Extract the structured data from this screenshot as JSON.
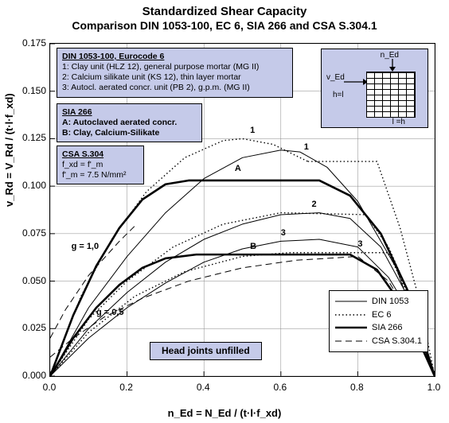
{
  "title1": "Standardized Shear Capacity",
  "title2": "Comparison DIN 1053-100, EC 6, SIA 266 and CSA S.304.1",
  "ylabel": "v_Rd = V_Rd / (t·l·f_xd)",
  "xlabel": "n_Ed = N_Ed / (t·l·f_xd)",
  "xlim": [
    0.0,
    1.0
  ],
  "ylim": [
    0.0,
    0.175
  ],
  "xticks": [
    0.0,
    0.2,
    0.4,
    0.6,
    0.8,
    1.0
  ],
  "yticks": [
    0.0,
    0.025,
    0.05,
    0.075,
    0.1,
    0.125,
    0.15,
    0.175
  ],
  "grid_color": "#888",
  "chart_bg": "#ffffff",
  "colors": {
    "text": "#000000",
    "box_bg": "#c5cae9",
    "line": "#000000"
  },
  "box_din": {
    "title": "DIN 1053-100, Eurocode 6",
    "lines": [
      "1: Clay unit (HLZ 12), general purpose mortar (MG II)",
      "2: Calcium silikate unit (KS 12), thin layer mortar",
      "3: Autocl. aerated concr. unit (PB 2), g.p.m. (MG II)"
    ]
  },
  "box_sia": {
    "title": "SIA 266",
    "lines": [
      "A: Autoclaved aerated concr.",
      "B: Clay, Calcium-Silikate"
    ]
  },
  "box_csa": {
    "title": "CSA S.304",
    "lines": [
      "f_xd = f'_m",
      "f'_m = 7.5 N/mm²"
    ]
  },
  "center_label": "Head joints unfilled",
  "legend": [
    {
      "label": "DIN 1053",
      "style": "solid",
      "weight": 1
    },
    {
      "label": "EC 6",
      "style": "dotted",
      "weight": 1.5
    },
    {
      "label": "SIA 266",
      "style": "solid",
      "weight": 2.4
    },
    {
      "label": "CSA S.304.1",
      "style": "dashed",
      "weight": 1
    }
  ],
  "inset": {
    "vEd": "v_Ed",
    "nEd": "n_Ed",
    "h": "h=l",
    "l": "l =h"
  },
  "curve_labels": {
    "g10": "g = 1,0",
    "g05": "g = 0,5",
    "A": "A",
    "B": "B",
    "1a": "1",
    "1b": "1",
    "2": "2",
    "3a": "3",
    "3b": "3"
  },
  "series": {
    "DIN_1": {
      "style": "solid",
      "w": 1,
      "pts": [
        [
          0,
          0
        ],
        [
          0.1,
          0.036
        ],
        [
          0.2,
          0.063
        ],
        [
          0.3,
          0.086
        ],
        [
          0.4,
          0.104
        ],
        [
          0.5,
          0.115
        ],
        [
          0.6,
          0.119
        ],
        [
          0.65,
          0.118
        ],
        [
          0.72,
          0.11
        ],
        [
          0.8,
          0.092
        ],
        [
          0.9,
          0.057
        ],
        [
          1,
          0
        ]
      ]
    },
    "DIN_2": {
      "style": "solid",
      "w": 1,
      "pts": [
        [
          0,
          0
        ],
        [
          0.1,
          0.025
        ],
        [
          0.2,
          0.044
        ],
        [
          0.3,
          0.06
        ],
        [
          0.4,
          0.072
        ],
        [
          0.5,
          0.08
        ],
        [
          0.6,
          0.085
        ],
        [
          0.7,
          0.086
        ],
        [
          0.78,
          0.083
        ],
        [
          0.86,
          0.068
        ],
        [
          0.93,
          0.042
        ],
        [
          1,
          0
        ]
      ]
    },
    "DIN_3": {
      "style": "solid",
      "w": 1,
      "pts": [
        [
          0,
          0
        ],
        [
          0.1,
          0.02
        ],
        [
          0.2,
          0.036
        ],
        [
          0.3,
          0.049
        ],
        [
          0.4,
          0.06
        ],
        [
          0.5,
          0.067
        ],
        [
          0.6,
          0.071
        ],
        [
          0.7,
          0.072
        ],
        [
          0.8,
          0.068
        ],
        [
          0.88,
          0.052
        ],
        [
          0.94,
          0.032
        ],
        [
          1,
          0
        ]
      ]
    },
    "EC6_1": {
      "style": "dotted",
      "w": 1.4,
      "pts": [
        [
          0,
          0
        ],
        [
          0.08,
          0.042
        ],
        [
          0.16,
          0.072
        ],
        [
          0.25,
          0.097
        ],
        [
          0.35,
          0.115
        ],
        [
          0.45,
          0.124
        ],
        [
          0.5,
          0.125
        ],
        [
          0.58,
          0.122
        ],
        [
          0.67,
          0.113
        ],
        [
          0.67,
          0.113
        ]
      ]
    },
    "EC6_1b": {
      "style": "dotted",
      "w": 1.4,
      "pts": [
        [
          0.67,
          0.113
        ],
        [
          0.85,
          0.113
        ],
        [
          0.91,
          0.078
        ],
        [
          0.96,
          0.04
        ],
        [
          1,
          0
        ]
      ]
    },
    "EC6_2": {
      "style": "dotted",
      "w": 1.4,
      "pts": [
        [
          0,
          0
        ],
        [
          0.1,
          0.03
        ],
        [
          0.2,
          0.05
        ],
        [
          0.32,
          0.068
        ],
        [
          0.45,
          0.08
        ],
        [
          0.6,
          0.086
        ],
        [
          0.82,
          0.085
        ],
        [
          0.88,
          0.068
        ],
        [
          0.94,
          0.04
        ],
        [
          1,
          0
        ]
      ]
    },
    "EC6_3": {
      "style": "dotted",
      "w": 1.4,
      "pts": [
        [
          0,
          0
        ],
        [
          0.1,
          0.023
        ],
        [
          0.22,
          0.042
        ],
        [
          0.35,
          0.055
        ],
        [
          0.5,
          0.063
        ],
        [
          0.62,
          0.065
        ],
        [
          0.88,
          0.065
        ],
        [
          0.93,
          0.043
        ],
        [
          1,
          0
        ]
      ]
    },
    "SIA_A": {
      "style": "solid",
      "w": 2.6,
      "pts": [
        [
          0,
          0
        ],
        [
          0.06,
          0.032
        ],
        [
          0.12,
          0.058
        ],
        [
          0.18,
          0.078
        ],
        [
          0.24,
          0.093
        ],
        [
          0.3,
          0.101
        ],
        [
          0.36,
          0.103
        ],
        [
          0.7,
          0.103
        ],
        [
          0.78,
          0.095
        ],
        [
          0.86,
          0.075
        ],
        [
          0.93,
          0.045
        ],
        [
          1,
          0
        ]
      ]
    },
    "SIA_B": {
      "style": "solid",
      "w": 2.6,
      "pts": [
        [
          0,
          0
        ],
        [
          0.06,
          0.02
        ],
        [
          0.12,
          0.036
        ],
        [
          0.18,
          0.048
        ],
        [
          0.24,
          0.057
        ],
        [
          0.3,
          0.062
        ],
        [
          0.38,
          0.064
        ],
        [
          0.78,
          0.064
        ],
        [
          0.85,
          0.056
        ],
        [
          0.92,
          0.036
        ],
        [
          1,
          0
        ]
      ]
    },
    "CSA_g10": {
      "style": "dashed",
      "w": 1,
      "pts": [
        [
          0,
          0.02
        ],
        [
          0.04,
          0.035
        ],
        [
          0.1,
          0.053
        ],
        [
          0.18,
          0.071
        ],
        [
          0.22,
          0.079
        ]
      ]
    },
    "CSA_g05": {
      "style": "dashed",
      "w": 1,
      "pts": [
        [
          0,
          0.01
        ],
        [
          0.06,
          0.02
        ],
        [
          0.14,
          0.031
        ],
        [
          0.24,
          0.041
        ],
        [
          0.36,
          0.05
        ],
        [
          0.5,
          0.057
        ],
        [
          0.64,
          0.061
        ],
        [
          0.8,
          0.063
        ],
        [
          0.88,
          0.05
        ],
        [
          0.94,
          0.03
        ],
        [
          1,
          0
        ]
      ]
    }
  }
}
